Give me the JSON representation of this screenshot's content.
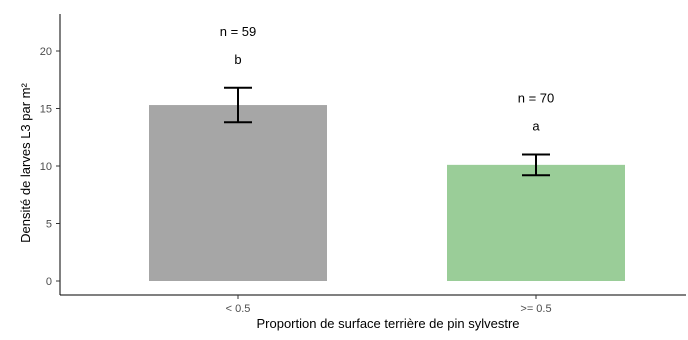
{
  "chart_data": {
    "type": "bar",
    "title": "",
    "xlabel": "Proportion de surface terrière de pin sylvestre",
    "ylabel": "Densité de larves L3 par m²",
    "categories": [
      "< 0.5",
      ">= 0.5"
    ],
    "values": [
      15.3,
      10.1
    ],
    "error_low": [
      13.8,
      9.2
    ],
    "error_high": [
      16.8,
      11.0
    ],
    "letters": [
      "b",
      "a"
    ],
    "n_labels": [
      "n = 59",
      "n = 70"
    ],
    "ylim": [
      0,
      23
    ],
    "yticks": [
      0,
      5,
      10,
      15,
      20
    ],
    "colors": [
      "#a6a6a6",
      "#9acd98"
    ],
    "grid": false,
    "legend": "none"
  }
}
